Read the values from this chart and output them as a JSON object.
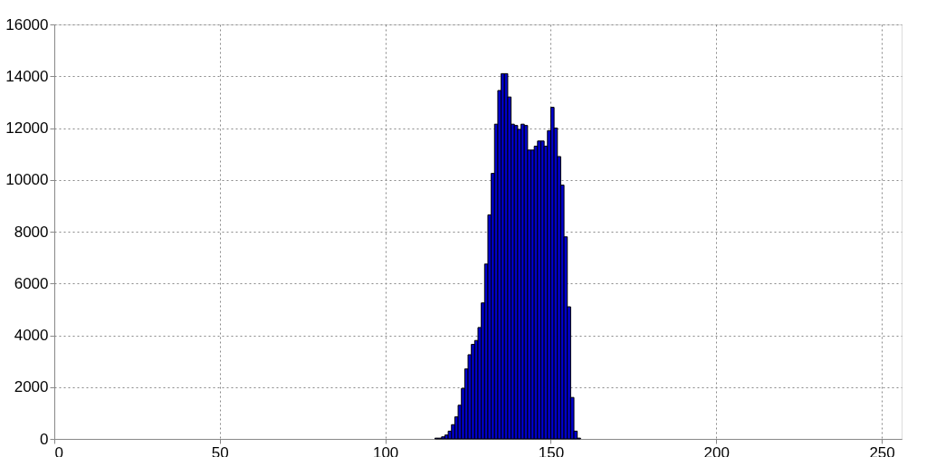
{
  "chart_data": {
    "type": "histogram",
    "bins": [
      115,
      116,
      117,
      118,
      119,
      120,
      121,
      122,
      123,
      124,
      125,
      126,
      127,
      128,
      129,
      130,
      131,
      132,
      133,
      134,
      135,
      136,
      137,
      138,
      139,
      140,
      141,
      142,
      143,
      144,
      145,
      146,
      147,
      148,
      149,
      150,
      151,
      152,
      153,
      154,
      155,
      156,
      157,
      158,
      159
    ],
    "values": [
      30,
      30,
      80,
      150,
      300,
      550,
      850,
      1300,
      1950,
      2700,
      3250,
      3650,
      3800,
      4300,
      5250,
      6750,
      8650,
      10250,
      12150,
      13450,
      14100,
      14100,
      13200,
      12150,
      12100,
      11950,
      12150,
      12100,
      11150,
      11150,
      11300,
      11500,
      11500,
      11300,
      11900,
      12800,
      12000,
      10900,
      9800,
      7800,
      5100,
      1600,
      300,
      30
    ],
    "color": "#0000cc",
    "xlim": [
      0,
      256
    ],
    "xticks": [
      0,
      50,
      100,
      150,
      200,
      250
    ],
    "ylim": [
      0,
      16000
    ],
    "yticks": [
      0,
      2000,
      4000,
      6000,
      8000,
      10000,
      12000,
      14000,
      16000
    ],
    "grid": true
  }
}
